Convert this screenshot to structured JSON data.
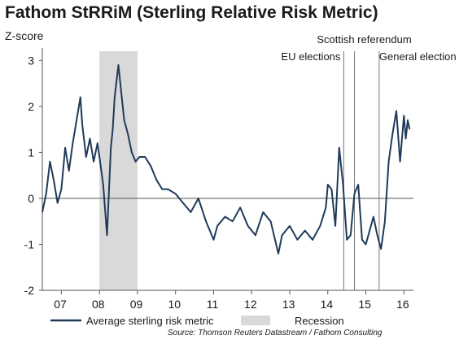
{
  "chart_data": {
    "type": "line",
    "title": "Fathom StRRiM (Sterling Relative Risk Metric)",
    "ylabel": "Z-score",
    "xlabel": "",
    "ylim": [
      -2,
      3.2
    ],
    "xlim": [
      2006.5,
      2016.25
    ],
    "yticks": [
      -2,
      -1,
      0,
      1,
      2,
      3
    ],
    "xtick_labels": [
      "07",
      "08",
      "09",
      "10",
      "11",
      "12",
      "13",
      "14",
      "15",
      "16"
    ],
    "grid": false,
    "legend_position": "bottom",
    "series": [
      {
        "name": "Average sterling risk metric",
        "color": "#1f3a5a",
        "x": [
          2006.5,
          2006.6,
          2006.7,
          2006.8,
          2006.9,
          2007.0,
          2007.1,
          2007.2,
          2007.3,
          2007.4,
          2007.5,
          2007.55,
          2007.65,
          2007.75,
          2007.85,
          2007.95,
          2008.0,
          2008.1,
          2008.2,
          2008.3,
          2008.35,
          2008.4,
          2008.5,
          2008.6,
          2008.65,
          2008.75,
          2008.85,
          2008.95,
          2009.05,
          2009.2,
          2009.35,
          2009.5,
          2009.65,
          2009.8,
          2010.0,
          2010.2,
          2010.4,
          2010.6,
          2010.8,
          2011.0,
          2011.1,
          2011.3,
          2011.5,
          2011.7,
          2011.9,
          2012.1,
          2012.3,
          2012.5,
          2012.7,
          2012.8,
          2013.0,
          2013.2,
          2013.4,
          2013.6,
          2013.8,
          2013.95,
          2014.0,
          2014.1,
          2014.2,
          2014.3,
          2014.4,
          2014.5,
          2014.6,
          2014.7,
          2014.8,
          2014.9,
          2015.0,
          2015.1,
          2015.2,
          2015.3,
          2015.4,
          2015.5,
          2015.6,
          2015.7,
          2015.8,
          2015.9,
          2016.0,
          2016.05,
          2016.1,
          2016.15
        ],
        "values": [
          -0.3,
          0.1,
          0.8,
          0.4,
          -0.1,
          0.2,
          1.1,
          0.6,
          1.2,
          1.7,
          2.2,
          1.6,
          0.9,
          1.3,
          0.8,
          1.2,
          0.9,
          0.3,
          -0.8,
          1.1,
          1.5,
          2.2,
          2.9,
          2.1,
          1.7,
          1.4,
          1.0,
          0.8,
          0.9,
          0.9,
          0.7,
          0.4,
          0.2,
          0.2,
          0.1,
          -0.1,
          -0.3,
          0.0,
          -0.5,
          -0.9,
          -0.6,
          -0.4,
          -0.5,
          -0.2,
          -0.6,
          -0.8,
          -0.3,
          -0.5,
          -1.2,
          -0.8,
          -0.6,
          -0.9,
          -0.7,
          -0.9,
          -0.6,
          -0.2,
          0.3,
          0.2,
          -0.6,
          1.1,
          0.3,
          -0.9,
          -0.8,
          0.1,
          0.3,
          -0.9,
          -1.0,
          -0.7,
          -0.4,
          -0.8,
          -1.1,
          -0.5,
          0.8,
          1.4,
          1.9,
          0.8,
          1.8,
          1.3,
          1.7,
          1.5
        ]
      }
    ],
    "shaded_regions": [
      {
        "name": "Recession",
        "x0": 2008.0,
        "x1": 2009.0,
        "color": "#d9d9d9"
      }
    ],
    "vertical_markers": [
      {
        "label": "EU elections",
        "x": 2014.42
      },
      {
        "label": "Scottish referendum",
        "x": 2014.7
      },
      {
        "label": "General election",
        "x": 2015.35
      }
    ],
    "source": "Source: Thomson Reuters Datastream / Fathom Consulting"
  }
}
